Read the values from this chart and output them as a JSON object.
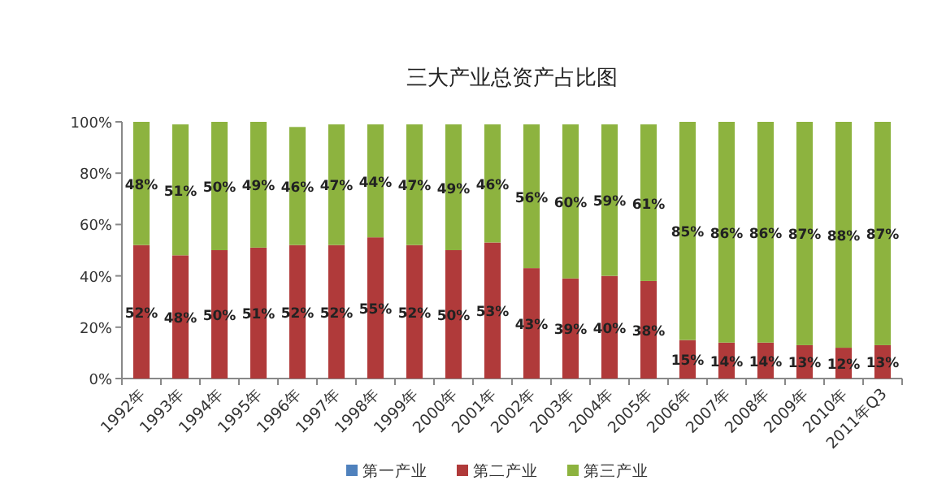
{
  "chart_data": {
    "type": "bar",
    "stacked": true,
    "title": "三大产业总资产占比图",
    "categories": [
      "1992年",
      "1993年",
      "1994年",
      "1995年",
      "1996年",
      "1997年",
      "1998年",
      "1999年",
      "2000年",
      "2001年",
      "2002年",
      "2003年",
      "2004年",
      "2005年",
      "2006年",
      "2007年",
      "2008年",
      "2009年",
      "2010年",
      "2011年Q3"
    ],
    "series": [
      {
        "name": "第一产业",
        "color": "#4f81bd",
        "values": [
          null,
          null,
          null,
          null,
          null,
          null,
          null,
          null,
          null,
          null,
          null,
          null,
          null,
          null,
          null,
          null,
          null,
          null,
          null,
          null
        ],
        "value_labels": [
          null,
          null,
          null,
          null,
          null,
          null,
          null,
          null,
          null,
          null,
          null,
          null,
          null,
          null,
          null,
          null,
          null,
          null,
          null,
          null
        ]
      },
      {
        "name": "第二产业",
        "color": "#b03a3a",
        "values": [
          52,
          48,
          50,
          51,
          52,
          52,
          55,
          52,
          50,
          53,
          43,
          39,
          40,
          38,
          15,
          14,
          14,
          13,
          12,
          13
        ],
        "value_labels": [
          "52%",
          "48%",
          "50%",
          "51%",
          "52%",
          "52%",
          "55%",
          "52%",
          "50%",
          "53%",
          "43%",
          "39%",
          "40%",
          "38%",
          "15%",
          "14%",
          "14%",
          "13%",
          "12%",
          "13%"
        ]
      },
      {
        "name": "第三产业",
        "color": "#8db33f",
        "values": [
          48,
          51,
          50,
          49,
          46,
          47,
          44,
          47,
          49,
          46,
          56,
          60,
          59,
          61,
          85,
          86,
          86,
          87,
          88,
          87
        ],
        "value_labels": [
          "48%",
          "51%",
          "50%",
          "49%",
          "46%",
          "47%",
          "44%",
          "47%",
          "49%",
          "46%",
          "56%",
          "60%",
          "59%",
          "61%",
          "85%",
          "86%",
          "86%",
          "87%",
          "88%",
          "87%"
        ]
      }
    ],
    "ylim": [
      0,
      100
    ],
    "yticks": [
      {
        "value": 0,
        "label": "0%"
      },
      {
        "value": 20,
        "label": "20%"
      },
      {
        "value": 40,
        "label": "40%"
      },
      {
        "value": 60,
        "label": "60%"
      },
      {
        "value": 80,
        "label": "80%"
      },
      {
        "value": 100,
        "label": "100%"
      }
    ],
    "legend": "bottom",
    "grid": false
  }
}
